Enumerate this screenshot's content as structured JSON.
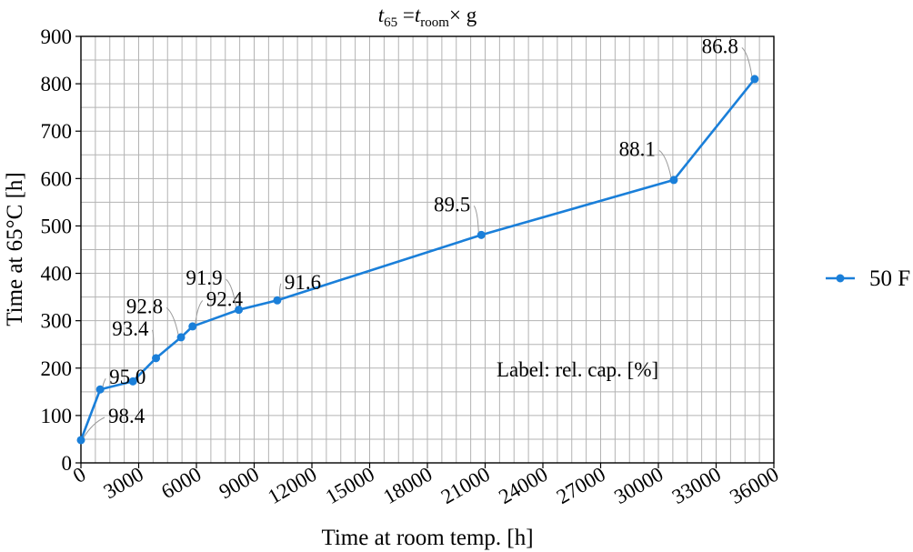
{
  "chart_data": {
    "type": "line",
    "title_parts": {
      "var": "t",
      "sub1": "65",
      "eq": " =",
      "var2": "t",
      "sub2": "room",
      "rest": "× g"
    },
    "xlabel": "Time at room temp. [h]",
    "ylabel": "Time at 65°C [h]",
    "xlim": [
      0,
      36000
    ],
    "ylim": [
      0,
      900
    ],
    "xticks": [
      "0",
      "3000",
      "6000",
      "9000",
      "12000",
      "15000",
      "18000",
      "21000",
      "24000",
      "27000",
      "30000",
      "33000",
      "36000"
    ],
    "yticks": [
      "0",
      "100",
      "200",
      "300",
      "400",
      "500",
      "600",
      "700",
      "800",
      "900"
    ],
    "grid": true,
    "legend_position": "right",
    "annotation": "Label: rel. cap. [%]",
    "series": [
      {
        "name": "50 F",
        "color": "#1a7fd9",
        "points": [
          {
            "x": 0,
            "y": 48,
            "label": "98.4"
          },
          {
            "x": 1000,
            "y": 155,
            "label": "95.0"
          },
          {
            "x": 2700,
            "y": 172,
            "label": ""
          },
          {
            "x": 3900,
            "y": 221,
            "label": "93.4"
          },
          {
            "x": 5200,
            "y": 265,
            "label": "92.8"
          },
          {
            "x": 5800,
            "y": 288,
            "label": "92.4"
          },
          {
            "x": 8200,
            "y": 323,
            "label": "91.9"
          },
          {
            "x": 10200,
            "y": 343,
            "label": "91.6"
          },
          {
            "x": 20800,
            "y": 481,
            "label": "89.5"
          },
          {
            "x": 30800,
            "y": 597,
            "label": "88.1"
          },
          {
            "x": 35000,
            "y": 810,
            "label": "86.8"
          }
        ]
      }
    ]
  }
}
